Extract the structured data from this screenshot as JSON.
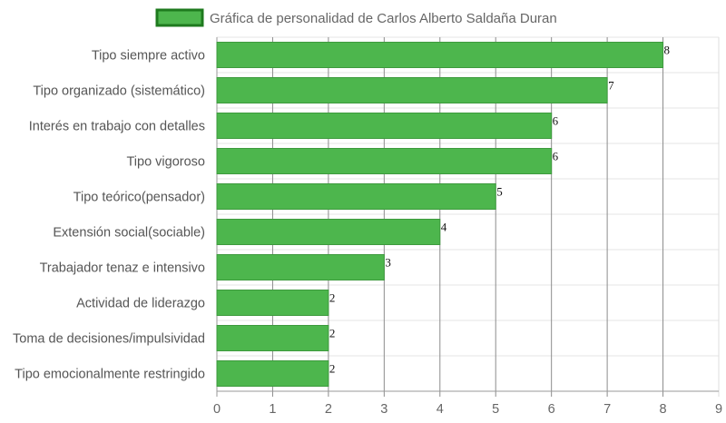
{
  "chart_data": {
    "type": "bar",
    "orientation": "horizontal",
    "legend": {
      "label": "Gráfica de personalidad de Carlos Alberto Saldaña Duran",
      "position": "top"
    },
    "categories": [
      "Tipo siempre activo",
      "Tipo organizado (sistemático)",
      "Interés en trabajo con detalles",
      "Tipo vigoroso",
      "Tipo teórico(pensador)",
      "Extensión social(sociable)",
      "Trabajador tenaz e intensivo",
      "Actividad de liderazgo",
      "Toma de decisiones/impulsividad",
      "Tipo emocionalmente restringido"
    ],
    "values": [
      8,
      7,
      6,
      6,
      5,
      4,
      3,
      2,
      2,
      2
    ],
    "xlim": [
      0,
      9
    ],
    "xticks": [
      "0",
      "1",
      "2",
      "3",
      "4",
      "5",
      "6",
      "7",
      "8",
      "9"
    ],
    "grid": true,
    "colors": {
      "bar": "#4db64d",
      "bar_border": "#3d9a3d",
      "legend_border": "#1e7a1e"
    }
  }
}
